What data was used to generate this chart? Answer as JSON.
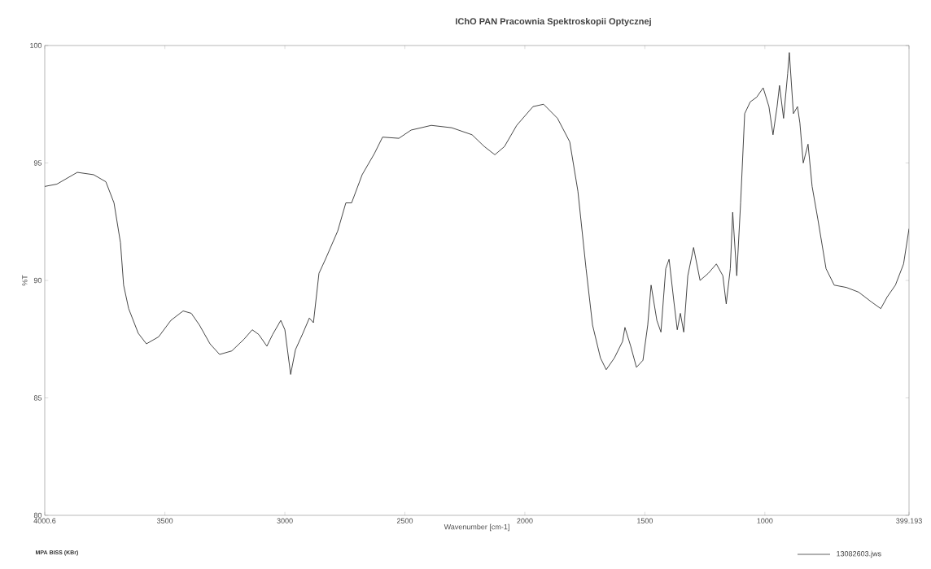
{
  "chart_data": {
    "type": "line",
    "title": "IChO PAN Pracownia Spektroskopii Optycznej",
    "xlabel": "Wavenumber [cm-1]",
    "ylabel": "%T",
    "annotations": [
      "MPA BISS (KBr)"
    ],
    "xlim": [
      4000.6,
      399.193
    ],
    "ylim": [
      80,
      100
    ],
    "xticks": [
      4000.6,
      3500,
      3000,
      2500,
      2000,
      1500,
      1000,
      399.193
    ],
    "yticks": [
      80,
      85,
      90,
      95,
      100
    ],
    "grid": false,
    "legend": "bottom right",
    "marker": "none",
    "line_style": "solid",
    "x": [
      4000.6,
      3950,
      3865,
      3797,
      3746,
      3712,
      3685,
      3672,
      3651,
      3611,
      3577,
      3526,
      3475,
      3424,
      3390,
      3356,
      3312,
      3272,
      3221,
      3170,
      3136,
      3109,
      3075,
      3051,
      3017,
      3000,
      2976,
      2956,
      2925,
      2898,
      2881,
      2858,
      2831,
      2780,
      2746,
      2722,
      2678,
      2627,
      2593,
      2525,
      2474,
      2390,
      2305,
      2220,
      2169,
      2125,
      2085,
      2034,
      1966,
      1922,
      1864,
      1813,
      1779,
      1745,
      1718,
      1685,
      1661,
      1627,
      1593,
      1583,
      1559,
      1535,
      1508,
      1488,
      1474,
      1450,
      1433,
      1413,
      1399,
      1379,
      1365,
      1352,
      1338,
      1321,
      1297,
      1270,
      1236,
      1202,
      1175,
      1161,
      1144,
      1134,
      1117,
      1101,
      1084,
      1061,
      1034,
      1007,
      983,
      966,
      949,
      939,
      922,
      905,
      898,
      881,
      864,
      854,
      840,
      820,
      803,
      779,
      745,
      711,
      660,
      609,
      558,
      517,
      490,
      456,
      422,
      399.193
    ],
    "series": [
      {
        "name": "13082603.jws",
        "color": "#333333",
        "values": [
          94.0,
          94.1,
          94.6,
          94.5,
          94.2,
          93.3,
          91.6,
          89.8,
          88.8,
          87.75,
          87.3,
          87.6,
          88.3,
          88.7,
          88.6,
          88.1,
          87.3,
          86.85,
          87.0,
          87.5,
          87.9,
          87.7,
          87.2,
          87.7,
          88.3,
          87.9,
          86.0,
          87.05,
          87.75,
          88.4,
          88.2,
          90.3,
          90.9,
          92.1,
          93.3,
          93.3,
          94.5,
          95.4,
          96.1,
          96.05,
          96.4,
          96.6,
          96.5,
          96.2,
          95.7,
          95.35,
          95.7,
          96.6,
          97.4,
          97.5,
          96.9,
          95.9,
          93.8,
          90.5,
          88.1,
          86.7,
          86.2,
          86.7,
          87.4,
          88.0,
          87.2,
          86.3,
          86.6,
          88.1,
          89.8,
          88.3,
          87.8,
          90.5,
          90.9,
          89.1,
          87.9,
          88.6,
          87.8,
          90.2,
          91.4,
          90.0,
          90.3,
          90.7,
          90.2,
          89.0,
          90.5,
          92.9,
          90.2,
          93.3,
          97.1,
          97.6,
          97.8,
          98.2,
          97.4,
          96.2,
          97.4,
          98.3,
          96.9,
          98.8,
          99.7,
          97.1,
          97.4,
          96.7,
          95.0,
          95.8,
          94.0,
          92.6,
          90.5,
          89.8,
          89.7,
          89.5,
          89.1,
          88.8,
          89.3,
          89.8,
          90.7,
          92.2
        ]
      }
    ]
  }
}
